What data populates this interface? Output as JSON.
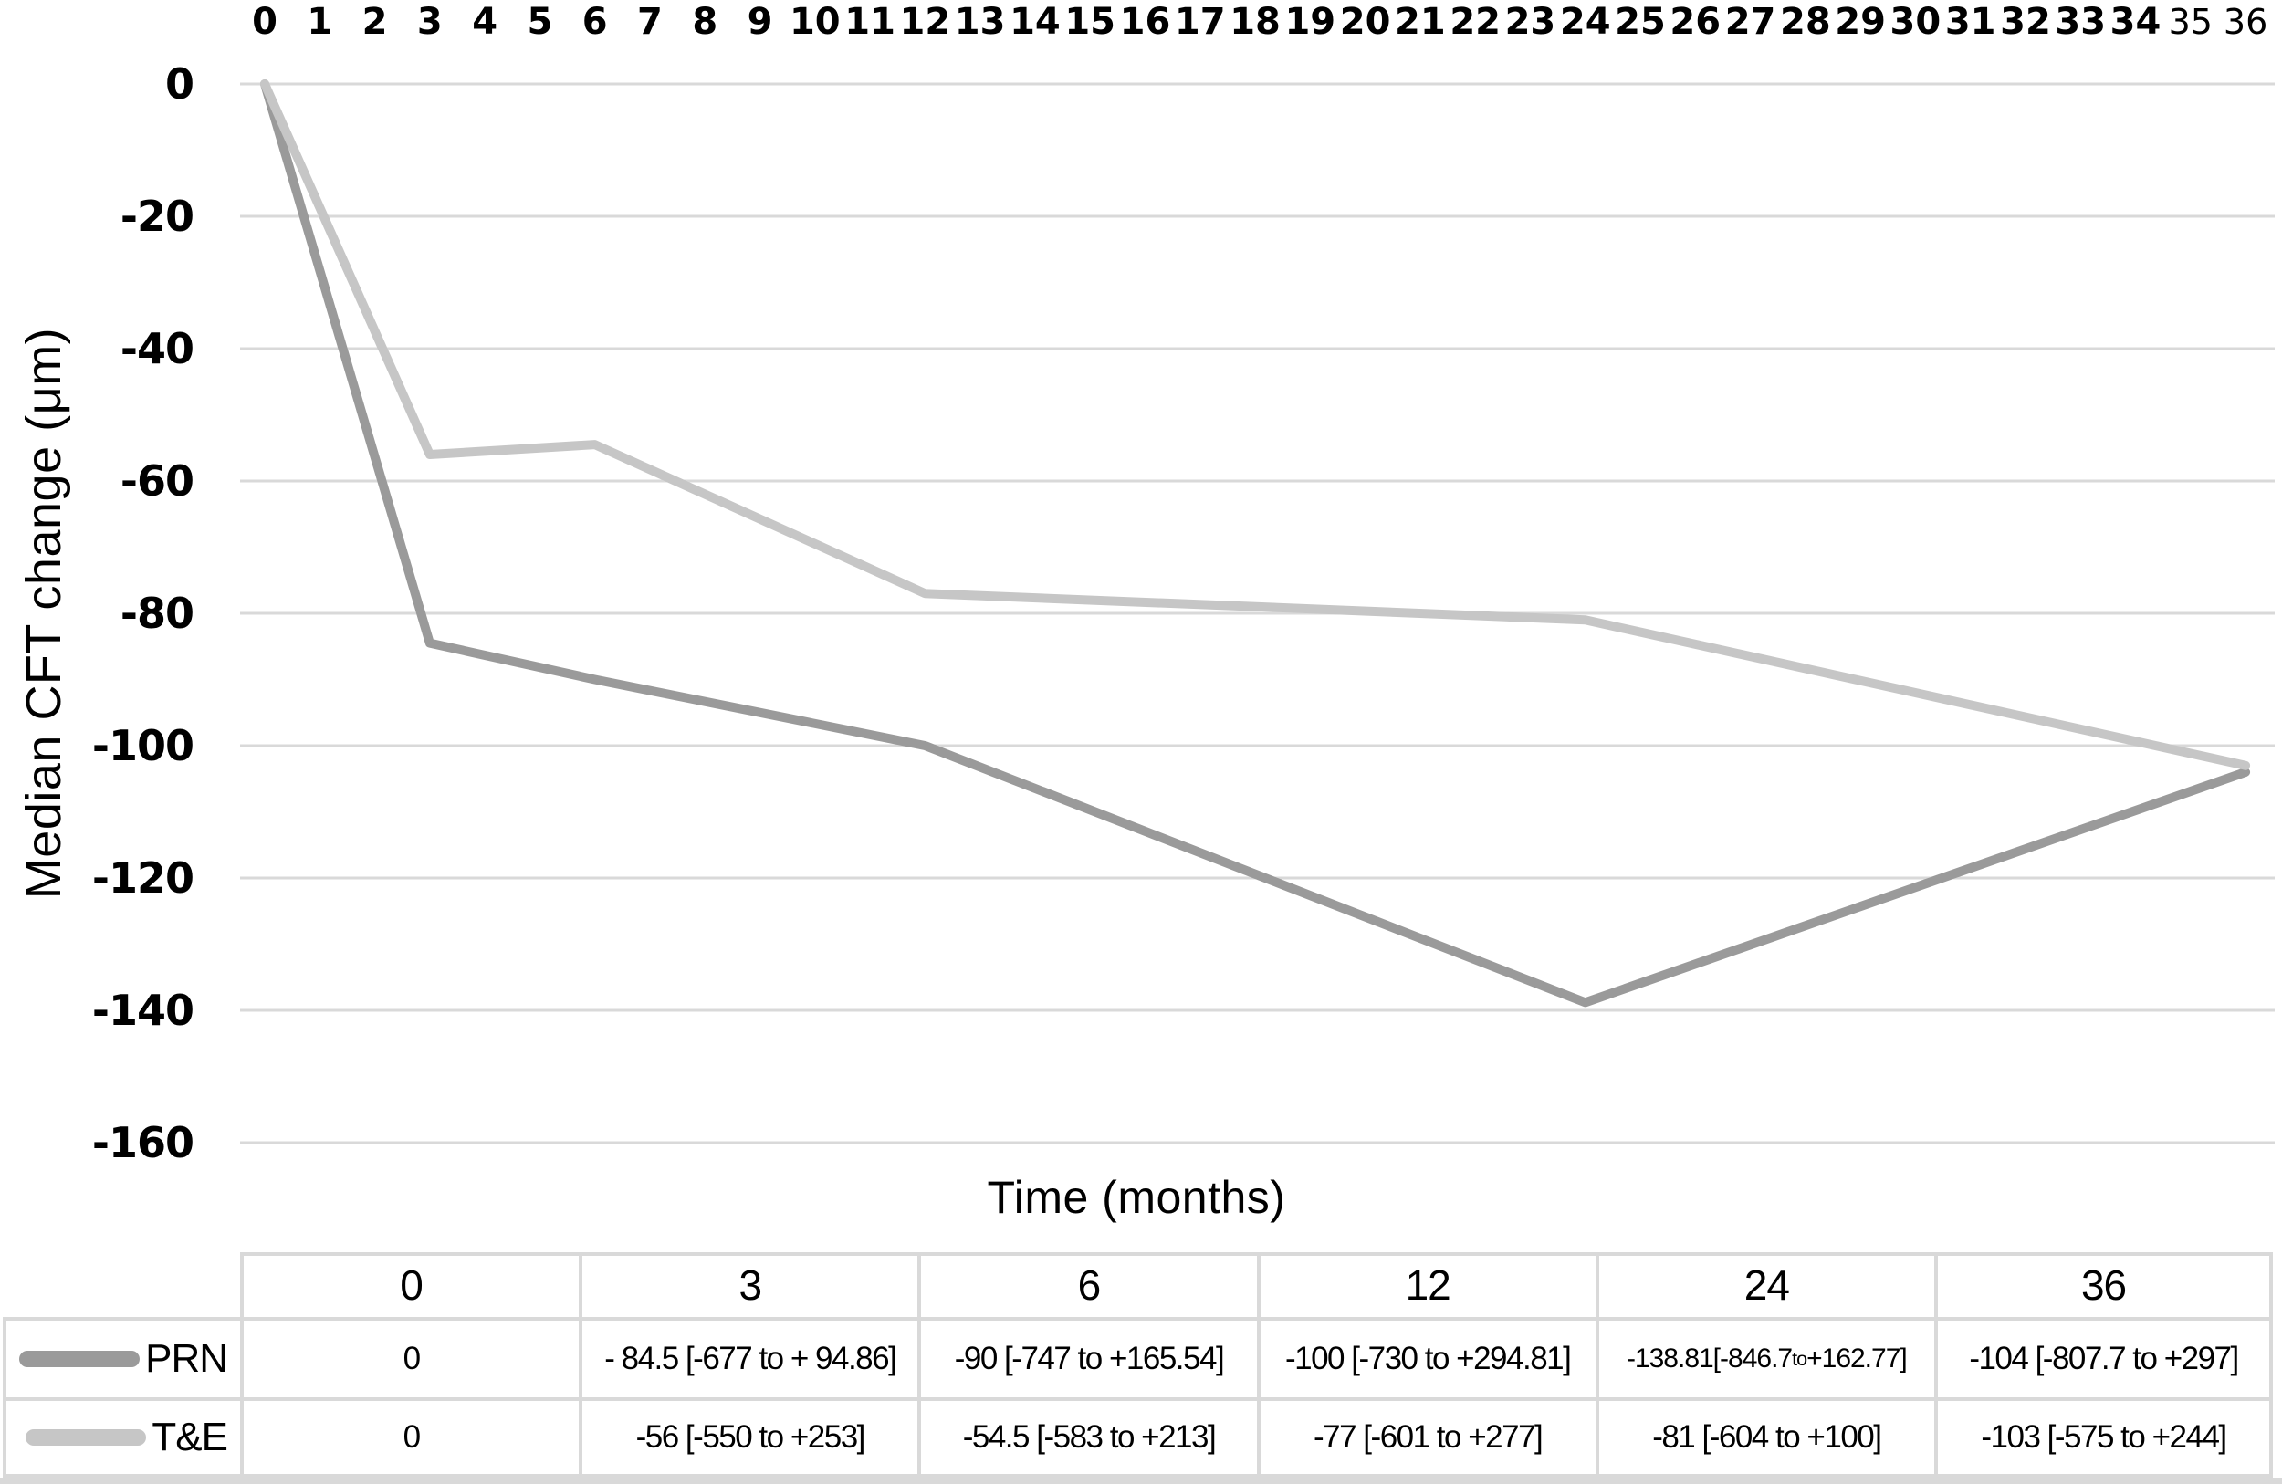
{
  "chart_data": {
    "type": "line",
    "title": "",
    "xlabel": "Time (months)",
    "ylabel": "Median CFT change (μm)",
    "x_axis": {
      "position": "top",
      "ticks": [
        0,
        1,
        2,
        3,
        4,
        5,
        6,
        7,
        8,
        9,
        10,
        11,
        12,
        13,
        14,
        15,
        16,
        17,
        18,
        19,
        20,
        21,
        22,
        23,
        24,
        25,
        26,
        27,
        28,
        29,
        30,
        31,
        32,
        33,
        34,
        35,
        36
      ],
      "light_ticks": [
        35,
        36
      ],
      "range": [
        0,
        36
      ]
    },
    "y_axis": {
      "ticks": [
        0,
        -20,
        -40,
        -60,
        -80,
        -100,
        -120,
        -140,
        -160
      ],
      "range": [
        0,
        -160
      ],
      "grid": true
    },
    "series": [
      {
        "name": "PRN",
        "color": "#9a9a9a",
        "x": [
          0,
          3,
          6,
          12,
          24,
          36
        ],
        "values": [
          0,
          -84.5,
          -90,
          -100,
          -138.81,
          -104
        ]
      },
      {
        "name": "T&E",
        "color": "#c6c6c6",
        "x": [
          0,
          3,
          6,
          12,
          24,
          36
        ],
        "values": [
          0,
          -56,
          -54.5,
          -77,
          -81,
          -103
        ]
      }
    ],
    "grid_color": "#d9d9d9",
    "legend_position": "table-left"
  },
  "table": {
    "columns": [
      "0",
      "3",
      "6",
      "12",
      "24",
      "36"
    ],
    "rows": [
      {
        "label": "PRN",
        "swatch_color": "#9a9a9a",
        "cells": [
          "0",
          "- 84.5 [-677 to + 94.86]",
          "-90 [-747 to +165.54]",
          "-100 [-730 to +294.81]",
          "-138.81[-846.7 to +162.77]",
          "-104 [-807.7 to +297]"
        ]
      },
      {
        "label": "T&E",
        "swatch_color": "#c6c6c6",
        "cells": [
          "0",
          "-56 [-550 to +253]",
          "-54.5 [-583 to +213]",
          "-77 [-601 to +277]",
          "-81 [-604 to +100]",
          "-103 [-575 to +244]"
        ]
      }
    ],
    "border_color": "#d9d9d9"
  }
}
